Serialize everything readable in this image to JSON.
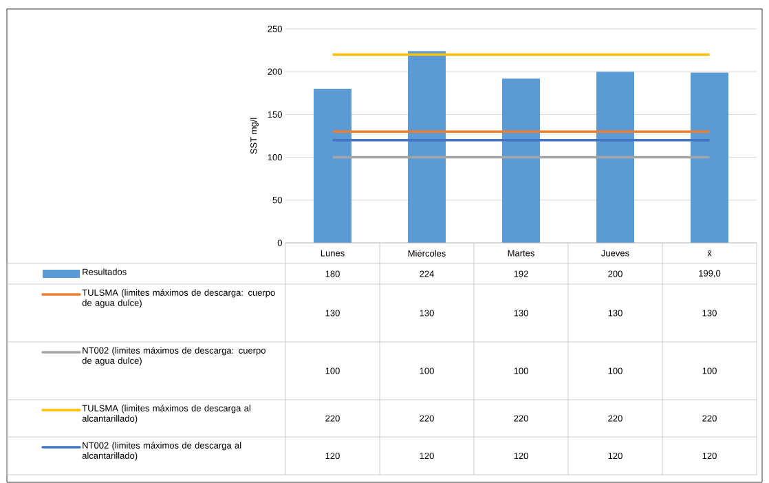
{
  "chart_data": {
    "type": "bar",
    "ylabel": "SST mg/l",
    "categories": [
      "Lunes",
      "Miércoles",
      "Martes",
      "Jueves",
      "x̄"
    ],
    "ylim": [
      0,
      250
    ],
    "yticks": [
      0,
      50,
      100,
      150,
      200,
      250
    ],
    "grid": "y",
    "legend": "bottom",
    "series": [
      {
        "name": "Resultados",
        "color": "#5b9bd5",
        "values": [
          180,
          224,
          192,
          200,
          199.0
        ],
        "value_labels": [
          "180",
          "224",
          "192",
          "200",
          "199,0"
        ]
      },
      {
        "name": "TULSMA (limites máximos de descarga: cuerpo de agua dulce)",
        "type": "line",
        "color": "#ed7d31",
        "values": [
          130,
          130,
          130,
          130,
          130
        ],
        "value_labels": [
          "130",
          "130",
          "130",
          "130",
          "130"
        ]
      },
      {
        "name": "NT002 (limites máximos de descarga: cuerpo de agua dulce)",
        "type": "line",
        "color": "#a5a5a5",
        "values": [
          100,
          100,
          100,
          100,
          100
        ],
        "value_labels": [
          "100",
          "100",
          "100",
          "100",
          "100"
        ]
      },
      {
        "name": "TULSMA (limites máximos de descarga al alcantarillado)",
        "type": "line",
        "color": "#ffc000",
        "values": [
          220,
          220,
          220,
          220,
          220
        ],
        "value_labels": [
          "220",
          "220",
          "220",
          "220",
          "220"
        ]
      },
      {
        "name": "NT002 (limites máximos de descarga al alcantarillado)",
        "type": "line",
        "color": "#4472c4",
        "values": [
          120,
          120,
          120,
          120,
          120
        ],
        "value_labels": [
          "120",
          "120",
          "120",
          "120",
          "120"
        ]
      }
    ]
  }
}
